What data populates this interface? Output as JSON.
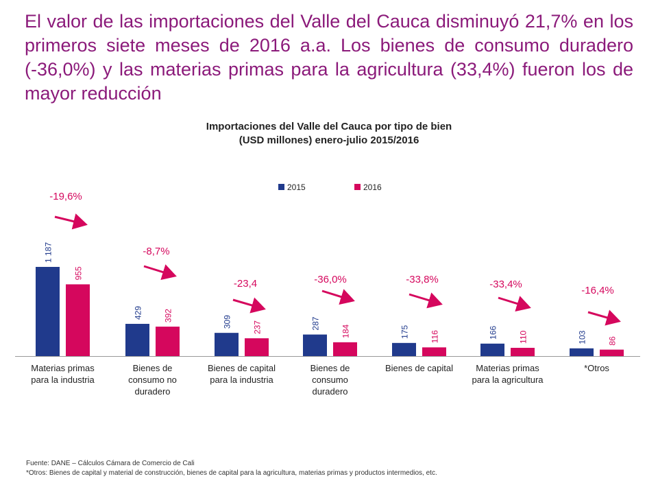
{
  "slide": {
    "headline": "El valor de las importaciones del Valle del Cauca disminuyó 21,7% en los primeros siete meses de 2016 a.a. Los bienes de consumo duradero (-36,0%) y las materias primas para la agricultura (33,4%) fueron los de mayor reducción",
    "source": "Fuente: DANE – Cálculos Cámara de Comercio de Cali",
    "note": "*Otros: Bienes de capital y material de construcción, bienes de capital para la agricultura, materias primas y productos intermedios, etc."
  },
  "chart_data": {
    "type": "bar",
    "title_line1": "Importaciones del Valle del Cauca por tipo de bien",
    "title_line2": "(USD millones) enero-julio 2015/2016",
    "categories": [
      [
        "Materias primas",
        "para la industria"
      ],
      [
        "Bienes de",
        "consumo no",
        "duradero"
      ],
      [
        "Bienes de capital",
        "para la industria"
      ],
      [
        "Bienes de",
        "consumo",
        "duradero"
      ],
      [
        "Bienes de capital"
      ],
      [
        "Materias primas",
        "para la agricultura"
      ],
      [
        "*Otros"
      ]
    ],
    "series": [
      {
        "name": "2015",
        "color": "#203a8c",
        "values": [
          1187,
          429,
          309,
          287,
          175,
          166,
          103
        ],
        "labels": [
          "1 187",
          "429",
          "309",
          "287",
          "175",
          "166",
          "103"
        ]
      },
      {
        "name": "2016",
        "color": "#d5075d",
        "values": [
          955,
          392,
          237,
          184,
          116,
          110,
          86
        ],
        "labels": [
          "955",
          "392",
          "237",
          "184",
          "116",
          "110",
          "86"
        ]
      }
    ],
    "changes": [
      "-19,6%",
      "-8,7%",
      "-23,4",
      "-36,0%",
      "-33,8%",
      "-33,4%",
      "-16,4%"
    ],
    "arrow_color": "#d5075d",
    "legend_position": "top",
    "grid": false,
    "ylim": [
      0,
      1200
    ]
  }
}
